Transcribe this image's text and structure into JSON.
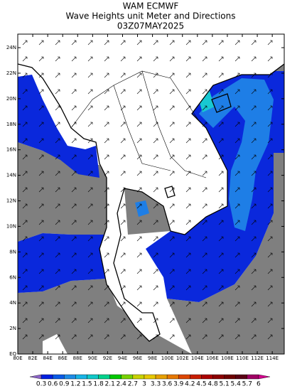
{
  "title": [
    "WAM ECMWF",
    "Wave Heights unit Meter and Directions",
    "03Z07MAY2025"
  ],
  "map": {
    "xlim": [
      80,
      115.6
    ],
    "ylim": [
      0,
      25.06
    ],
    "xticks": [
      {
        "value": 80,
        "label": "80E"
      },
      {
        "value": 82,
        "label": "82E"
      },
      {
        "value": 84,
        "label": "84E"
      },
      {
        "value": 86,
        "label": "86E"
      },
      {
        "value": 88,
        "label": "88E"
      },
      {
        "value": 90,
        "label": "90E"
      },
      {
        "value": 92,
        "label": "92E"
      },
      {
        "value": 94,
        "label": "94E"
      },
      {
        "value": 96,
        "label": "96E"
      },
      {
        "value": 98,
        "label": "98E"
      },
      {
        "value": 100,
        "label": "100E"
      },
      {
        "value": 102,
        "label": "102E"
      },
      {
        "value": 104,
        "label": "104E"
      },
      {
        "value": 106,
        "label": "106E"
      },
      {
        "value": 108,
        "label": "108E"
      },
      {
        "value": 110,
        "label": "110E"
      },
      {
        "value": 112,
        "label": "112E"
      },
      {
        "value": 114,
        "label": "114E"
      }
    ],
    "yticks": [
      {
        "value": 0,
        "label": "EQ"
      },
      {
        "value": 2,
        "label": "2N"
      },
      {
        "value": 4,
        "label": "4N"
      },
      {
        "value": 6,
        "label": "6N"
      },
      {
        "value": 8,
        "label": "8N"
      },
      {
        "value": 10,
        "label": "10N"
      },
      {
        "value": 12,
        "label": "12N"
      },
      {
        "value": 14,
        "label": "14N"
      },
      {
        "value": 16,
        "label": "16N"
      },
      {
        "value": 18,
        "label": "18N"
      },
      {
        "value": 20,
        "label": "20N"
      },
      {
        "value": 22,
        "label": "22N"
      },
      {
        "value": 24,
        "label": "24N"
      }
    ]
  },
  "colorbar": {
    "levels": [
      0.3,
      0.6,
      0.9,
      1.2,
      1.5,
      1.8,
      2.1,
      2.4,
      2.7,
      3,
      3.3,
      3.6,
      3.9,
      4.2,
      4.5,
      4.8,
      5.1,
      5.4,
      5.7,
      6
    ],
    "colors": [
      "#8c64c8",
      "#0020e0",
      "#0a5ae6",
      "#1e8ce6",
      "#18b4e6",
      "#10c8c8",
      "#00d28c",
      "#00c800",
      "#78d200",
      "#c8d200",
      "#e6c800",
      "#e6a000",
      "#e67800",
      "#dc4600",
      "#c81e00",
      "#aa0000",
      "#8c0000",
      "#6e0000",
      "#5a0014",
      "#a00064",
      "#d2008c"
    ]
  }
}
